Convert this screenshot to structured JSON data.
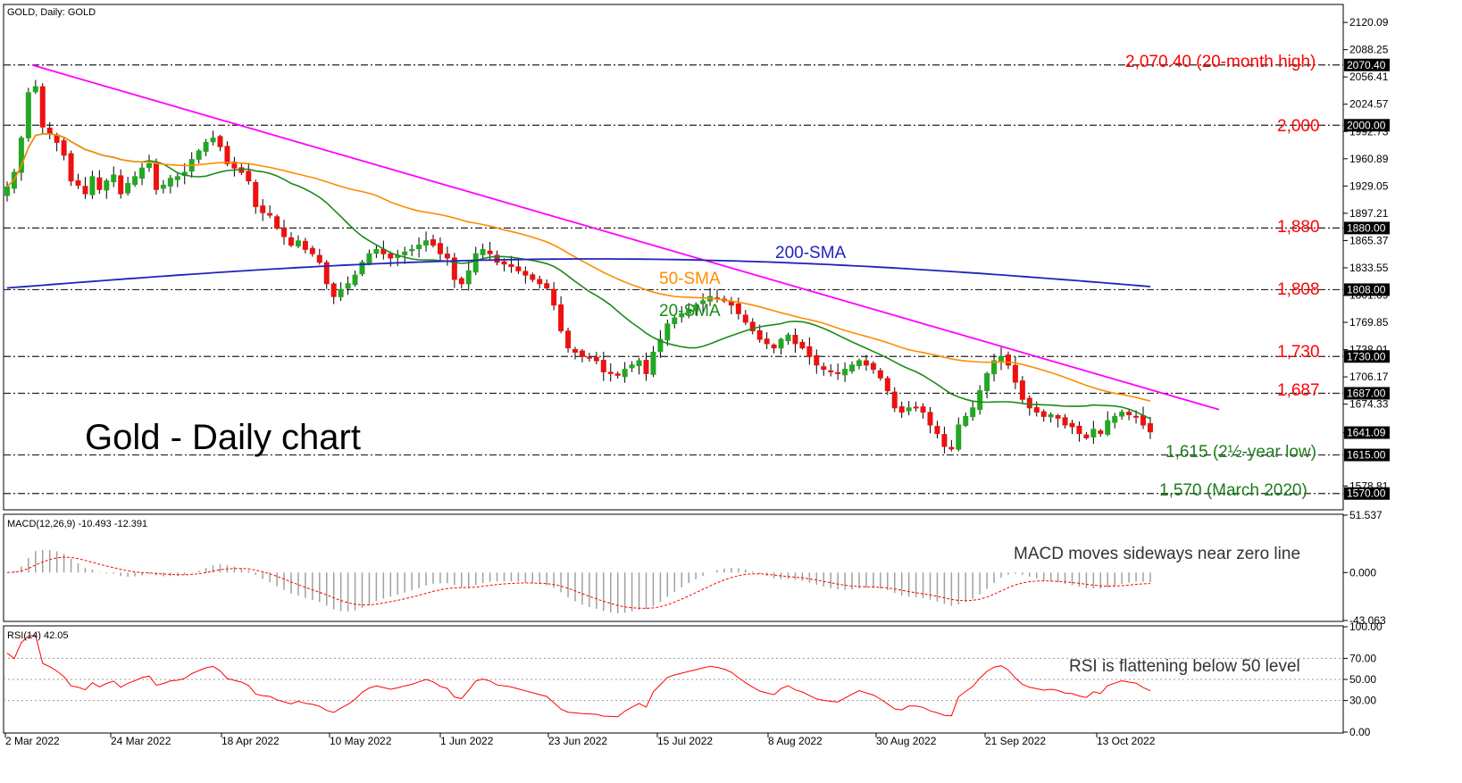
{
  "header": {
    "symbol_title": "GOLD, Daily:  GOLD"
  },
  "chart_title": "Gold - Daily chart",
  "colors": {
    "bull": "#22a822",
    "bear": "#ee1111",
    "sma20": "#1a8a1a",
    "sma50": "#ff8c00",
    "sma200": "#2222bb",
    "trendline": "#ff00ff",
    "macd_hist": "#a0a0a0",
    "macd_signal": "#ff0000",
    "rsi": "#ff0000"
  },
  "annotations": {
    "high_2070": "2,070.40 (20-month high)",
    "level_2000": "2,000",
    "level_1880": "1,880",
    "level_1808": "1,808",
    "level_1730": "1,730",
    "level_1687": "1,687",
    "low_1615": "1,615 (2½-year low)",
    "low_1570": "1,570 (March 2020)",
    "sma200": "200-SMA",
    "sma50": "50-SMA",
    "sma20": "20-SMA",
    "macd_note": "MACD moves sideways near zero line",
    "rsi_note": "RSI is flattening below 50 level"
  },
  "indicators": {
    "macd_label": "MACD(12,26,9) -10.493 -12.391",
    "rsi_label": "RSI(14) 42.05"
  },
  "chart_data": {
    "type": "candlestick",
    "price_axis_ticks": [
      "2120.09",
      "2088.25",
      "2056.41",
      "2024.57",
      "1992.73",
      "1960.89",
      "1929.05",
      "1897.21",
      "1865.37",
      "1833.55",
      "1801.69",
      "1769.85",
      "1738.01",
      "1706.17",
      "1674.33",
      "1641.09",
      "1578.81"
    ],
    "price_ylim": [
      1552,
      2140
    ],
    "highlight_levels": [
      {
        "label": "2070.40",
        "value": 2070.4
      },
      {
        "label": "2000.00",
        "value": 2000
      },
      {
        "label": "1880.00",
        "value": 1880
      },
      {
        "label": "1808.00",
        "value": 1808
      },
      {
        "label": "1730.00",
        "value": 1730
      },
      {
        "label": "1687.00",
        "value": 1687
      },
      {
        "label": "1641.09",
        "value": 1641.09
      },
      {
        "label": "1615.00",
        "value": 1615
      },
      {
        "label": "1570.00",
        "value": 1570
      }
    ],
    "x_labels": [
      "2 Mar 2022",
      "24 Mar 2022",
      "18 Apr 2022",
      "10 May 2022",
      "1 Jun 2022",
      "23 Jun 2022",
      "15 Jul 2022",
      "8 Aug 2022",
      "30 Aug 2022",
      "21 Sep 2022",
      "13 Oct 2022"
    ],
    "closes": [
      1928,
      1945,
      1985,
      2038,
      2045,
      1998,
      1990,
      1980,
      1965,
      1935,
      1930,
      1920,
      1940,
      1925,
      1935,
      1942,
      1920,
      1932,
      1940,
      1950,
      1955,
      1925,
      1930,
      1938,
      1940,
      1945,
      1960,
      1970,
      1980,
      1985,
      1975,
      1955,
      1950,
      1945,
      1935,
      1905,
      1898,
      1895,
      1880,
      1870,
      1860,
      1865,
      1855,
      1850,
      1840,
      1815,
      1800,
      1808,
      1815,
      1825,
      1840,
      1850,
      1855,
      1850,
      1845,
      1848,
      1852,
      1855,
      1860,
      1865,
      1860,
      1850,
      1845,
      1820,
      1815,
      1830,
      1850,
      1855,
      1850,
      1840,
      1838,
      1835,
      1830,
      1825,
      1820,
      1815,
      1810,
      1790,
      1760,
      1740,
      1735,
      1730,
      1728,
      1725,
      1712,
      1710,
      1708,
      1715,
      1720,
      1725,
      1710,
      1735,
      1750,
      1768,
      1775,
      1780,
      1785,
      1790,
      1795,
      1800,
      1798,
      1795,
      1790,
      1780,
      1770,
      1760,
      1750,
      1745,
      1740,
      1750,
      1755,
      1745,
      1740,
      1730,
      1720,
      1715,
      1712,
      1710,
      1715,
      1720,
      1725,
      1720,
      1715,
      1705,
      1690,
      1670,
      1665,
      1670,
      1670,
      1665,
      1650,
      1640,
      1625,
      1622,
      1650,
      1660,
      1670,
      1690,
      1710,
      1725,
      1730,
      1720,
      1700,
      1680,
      1670,
      1665,
      1660,
      1662,
      1658,
      1650,
      1648,
      1640,
      1635,
      1645,
      1640,
      1655,
      1660,
      1665,
      1662,
      1660,
      1650,
      1642
    ],
    "macd_ylim": [
      -43.063,
      51.537
    ],
    "macd_ticks": [
      "51.537",
      "0.000",
      "-43.063"
    ],
    "rsi_ylim": [
      0,
      100
    ],
    "rsi_ticks": [
      "100.00",
      "70.00",
      "50.00",
      "30.00",
      "0.00"
    ]
  }
}
